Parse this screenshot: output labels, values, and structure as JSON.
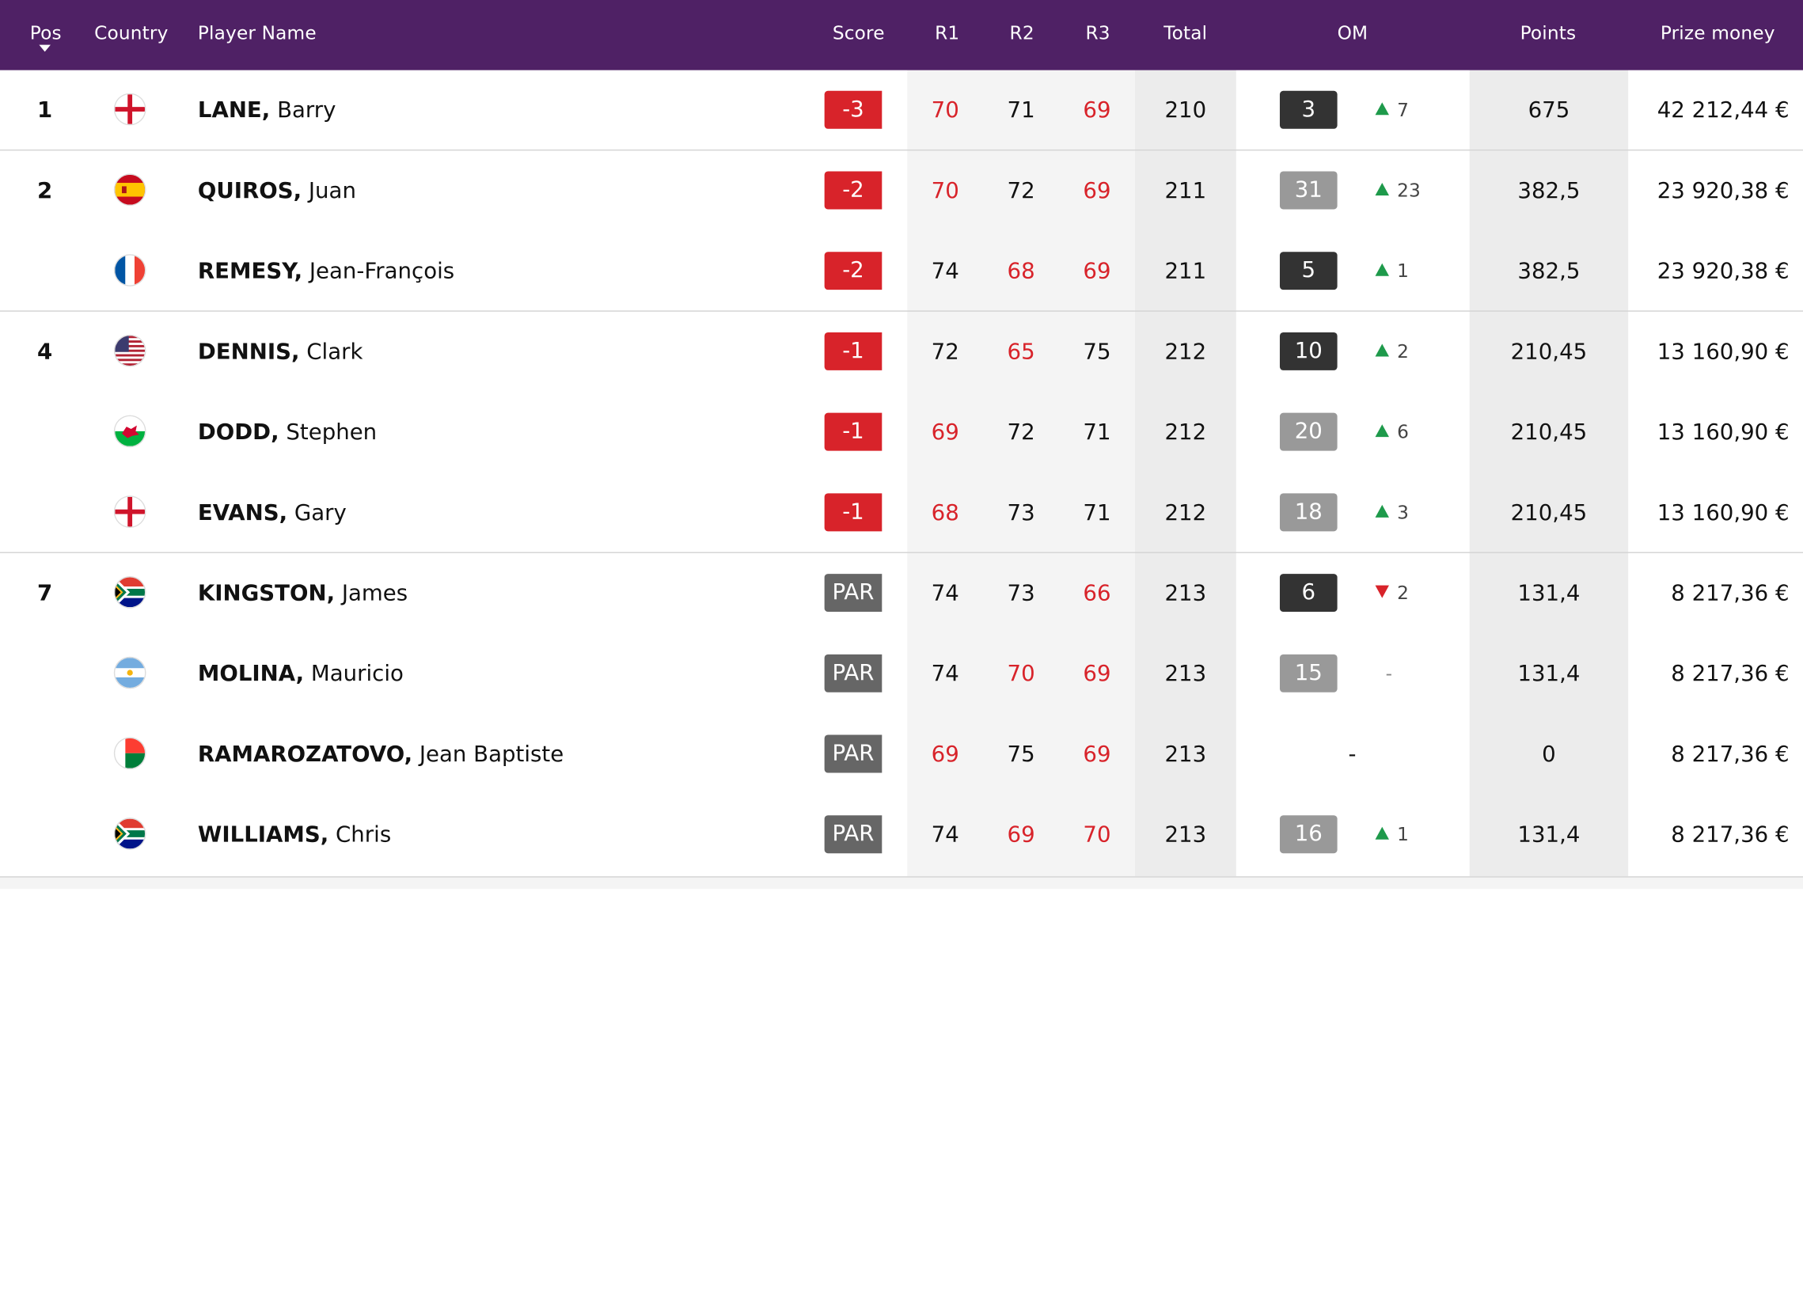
{
  "colors": {
    "header_bg": "#4f2165",
    "under_par_red": "#d8232a",
    "par_grey": "#666666",
    "om_dark": "#333333",
    "om_light": "#999999",
    "up_green": "#1e9a4b",
    "down_red": "#d8232a"
  },
  "header": {
    "pos": "Pos",
    "country": "Country",
    "player": "Player Name",
    "score": "Score",
    "r1": "R1",
    "r2": "R2",
    "r3": "R3",
    "total": "Total",
    "om": "OM",
    "points": "Points",
    "prize": "Prize money",
    "sort_icon": "sort-down-caret"
  },
  "rows": [
    {
      "pos": "1",
      "country": "England",
      "last": "LANE,",
      "first": "Barry",
      "score": "-3",
      "score_type": "under",
      "r1": "70",
      "r1_red": true,
      "r2": "71",
      "r2_red": false,
      "r3": "69",
      "r3_red": true,
      "total": "210",
      "om": "3",
      "om_style": "dark",
      "move_dir": "up",
      "move": "7",
      "points": "675",
      "prize": "42 212,44 €",
      "sep": false
    },
    {
      "pos": "2",
      "country": "Spain",
      "last": "QUIROS,",
      "first": "Juan",
      "score": "-2",
      "score_type": "under",
      "r1": "70",
      "r1_red": true,
      "r2": "72",
      "r2_red": false,
      "r3": "69",
      "r3_red": true,
      "total": "211",
      "om": "31",
      "om_style": "light",
      "move_dir": "up",
      "move": "23",
      "points": "382,5",
      "prize": "23 920,38 €",
      "sep": true
    },
    {
      "pos": "",
      "country": "France",
      "last": "REMESY,",
      "first": "Jean-François",
      "score": "-2",
      "score_type": "under",
      "r1": "74",
      "r1_red": false,
      "r2": "68",
      "r2_red": true,
      "r3": "69",
      "r3_red": true,
      "total": "211",
      "om": "5",
      "om_style": "dark",
      "move_dir": "up",
      "move": "1",
      "points": "382,5",
      "prize": "23 920,38 €",
      "sep": false
    },
    {
      "pos": "4",
      "country": "USA",
      "last": "DENNIS,",
      "first": "Clark",
      "score": "-1",
      "score_type": "under",
      "r1": "72",
      "r1_red": false,
      "r2": "65",
      "r2_red": true,
      "r3": "75",
      "r3_red": false,
      "total": "212",
      "om": "10",
      "om_style": "dark",
      "move_dir": "up",
      "move": "2",
      "points": "210,45",
      "prize": "13 160,90 €",
      "sep": true
    },
    {
      "pos": "",
      "country": "Wales",
      "last": "DODD,",
      "first": "Stephen",
      "score": "-1",
      "score_type": "under",
      "r1": "69",
      "r1_red": true,
      "r2": "72",
      "r2_red": false,
      "r3": "71",
      "r3_red": false,
      "total": "212",
      "om": "20",
      "om_style": "light",
      "move_dir": "up",
      "move": "6",
      "points": "210,45",
      "prize": "13 160,90 €",
      "sep": false
    },
    {
      "pos": "",
      "country": "England",
      "last": "EVANS,",
      "first": "Gary",
      "score": "-1",
      "score_type": "under",
      "r1": "68",
      "r1_red": true,
      "r2": "73",
      "r2_red": false,
      "r3": "71",
      "r3_red": false,
      "total": "212",
      "om": "18",
      "om_style": "light",
      "move_dir": "up",
      "move": "3",
      "points": "210,45",
      "prize": "13 160,90 €",
      "sep": false
    },
    {
      "pos": "7",
      "country": "South Africa",
      "last": "KINGSTON,",
      "first": "James",
      "score": "PAR",
      "score_type": "par",
      "r1": "74",
      "r1_red": false,
      "r2": "73",
      "r2_red": false,
      "r3": "66",
      "r3_red": true,
      "total": "213",
      "om": "6",
      "om_style": "dark",
      "move_dir": "down",
      "move": "2",
      "points": "131,4",
      "prize": "8 217,36 €",
      "sep": true
    },
    {
      "pos": "",
      "country": "Argentina",
      "last": "MOLINA,",
      "first": "Mauricio",
      "score": "PAR",
      "score_type": "par",
      "r1": "74",
      "r1_red": false,
      "r2": "70",
      "r2_red": true,
      "r3": "69",
      "r3_red": true,
      "total": "213",
      "om": "15",
      "om_style": "light",
      "move_dir": "none",
      "move": "-",
      "points": "131,4",
      "prize": "8 217,36 €",
      "sep": false
    },
    {
      "pos": "",
      "country": "Madagascar",
      "last": "RAMAROZATOVO,",
      "first": "Jean Baptiste",
      "score": "PAR",
      "score_type": "par",
      "r1": "69",
      "r1_red": true,
      "r2": "75",
      "r2_red": false,
      "r3": "69",
      "r3_red": true,
      "total": "213",
      "om": "-",
      "om_style": "none",
      "move_dir": "none",
      "move": "",
      "points": "0",
      "prize": "8 217,36 €",
      "sep": false
    },
    {
      "pos": "",
      "country": "South Africa",
      "last": "WILLIAMS,",
      "first": "Chris",
      "score": "PAR",
      "score_type": "par",
      "r1": "74",
      "r1_red": false,
      "r2": "69",
      "r2_red": true,
      "r3": "70",
      "r3_red": true,
      "total": "213",
      "om": "16",
      "om_style": "light",
      "move_dir": "up",
      "move": "1",
      "points": "131,4",
      "prize": "8 217,36 €",
      "sep": false
    }
  ]
}
